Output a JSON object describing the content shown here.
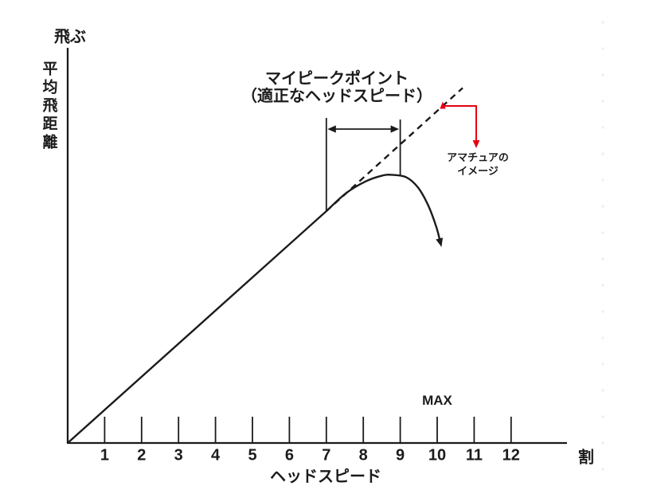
{
  "figure": {
    "y_axis_top_label": "飛ぶ",
    "y_axis_label": "平均飛距離",
    "x_axis_label": "ヘッドスピード",
    "x_axis_unit_label": "割",
    "max_label": "MAX",
    "peak_title_line1": "マイピークポイント",
    "peak_title_line2": "（適正なヘッドスピード）",
    "red_note_line1": "アマチュアの",
    "red_note_line2": "イメージ",
    "colors": {
      "line_black": "#1b1b1b",
      "accent_red": "#e60012",
      "background": "#ffffff"
    }
  },
  "chart_data": {
    "type": "line",
    "title": "マイピークポイント（適正なヘッドスピード）",
    "xlabel": "ヘッドスピード（割）",
    "ylabel": "平均飛距離（飛ぶ）",
    "x_ticks": [
      1,
      2,
      3,
      4,
      5,
      6,
      7,
      8,
      9,
      10,
      11,
      12
    ],
    "xlim": [
      0,
      13.5
    ],
    "ylim": [
      0,
      100
    ],
    "grid": false,
    "legend": "none",
    "series": [
      {
        "name": "平均飛距離（直線部）",
        "style": "solid",
        "points": [
          [
            0,
            0
          ],
          [
            7,
            58.7
          ]
        ]
      },
      {
        "name": "平均飛距離（ピーク後に失速する曲線部）",
        "style": "solid-curve",
        "end_arrow": true,
        "points": [
          [
            7,
            58.7
          ],
          [
            7.54,
            63.3
          ],
          [
            8.08,
            66.3
          ],
          [
            8.51,
            67.7
          ],
          [
            8.77,
            67.9
          ],
          [
            9.16,
            67.3
          ],
          [
            9.48,
            64.7
          ],
          [
            9.76,
            60.1
          ],
          [
            9.98,
            54.6
          ],
          [
            10.09,
            50.6
          ]
        ]
      },
      {
        "name": "アマチュアのイメージ（破線）",
        "style": "dashed",
        "points": [
          [
            7,
            58.7
          ],
          [
            10.69,
            89.9
          ]
        ]
      }
    ],
    "peak_zone": {
      "from_x": 7,
      "to_x": 9
    },
    "max_at_x": 10
  }
}
